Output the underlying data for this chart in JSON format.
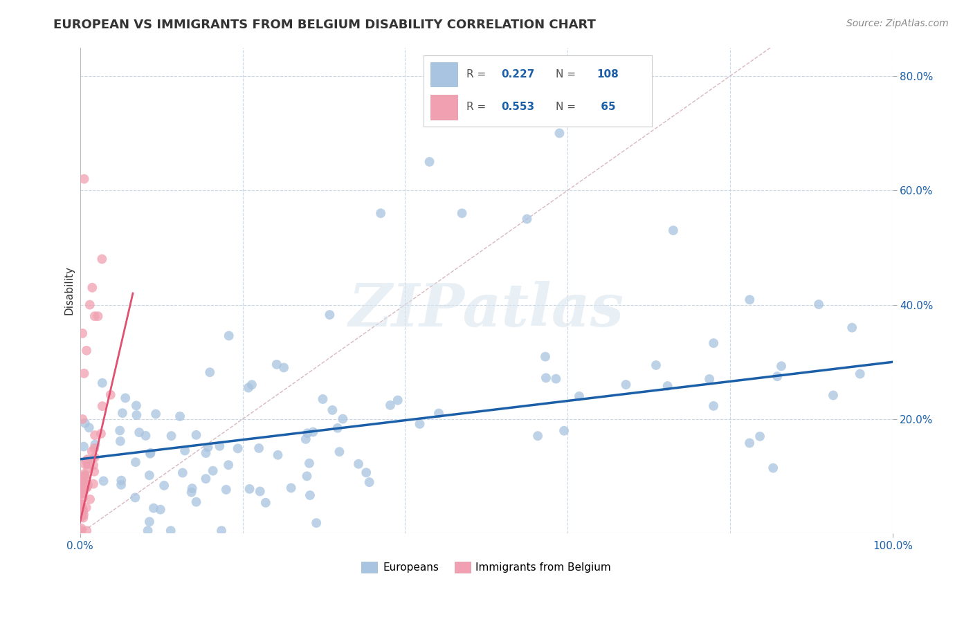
{
  "title": "EUROPEAN VS IMMIGRANTS FROM BELGIUM DISABILITY CORRELATION CHART",
  "source": "Source: ZipAtlas.com",
  "ylabel": "Disability",
  "xlabel": "",
  "xlim": [
    0.0,
    1.0
  ],
  "ylim": [
    0.0,
    0.85
  ],
  "europeans_R": 0.227,
  "europeans_N": 108,
  "immigrants_R": 0.553,
  "immigrants_N": 65,
  "scatter_color_europeans": "#a8c4e0",
  "scatter_color_immigrants": "#f0a0b0",
  "line_color_europeans": "#1a5fa8",
  "line_color_immigrants": "#e05070",
  "diagonal_color": "#d8b8c0",
  "background_color": "#ffffff",
  "grid_color": "#c8d8e8",
  "watermark": "ZIPatlas",
  "legend_box_color_europeans": "#a8c4e0",
  "legend_box_color_immigrants": "#f0a0b0",
  "legend_text_color": "#1a5fa8",
  "title_color": "#333333",
  "source_color": "#888888",
  "eu_line": [
    0.0,
    1.0,
    0.13,
    0.3
  ],
  "im_line": [
    0.0,
    0.065,
    0.02,
    0.42
  ]
}
